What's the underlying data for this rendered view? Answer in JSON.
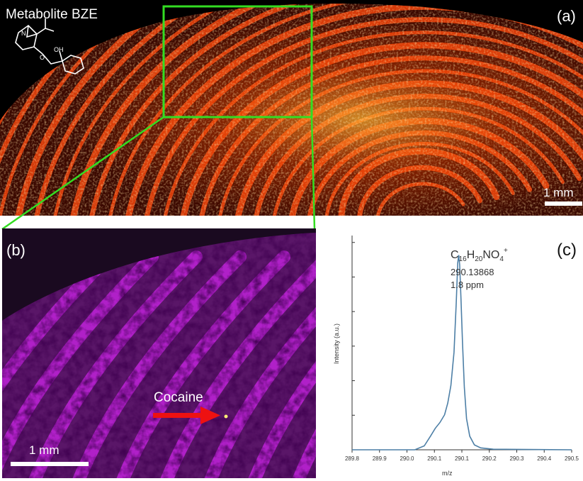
{
  "panel_a": {
    "title": "Metabolite BZE",
    "label": "(a)",
    "scale_bar": "1 mm",
    "molecule": {
      "atom_n": "N",
      "atom_oh": "OH",
      "atom_o": "O"
    }
  },
  "panel_b": {
    "label": "(b)",
    "annotation": "Cocaine",
    "scale_bar": "1 mm"
  },
  "panel_c": {
    "label": "(c)",
    "formula": {
      "c": "C",
      "c_sub": "16",
      "h": "H",
      "h_sub": "20",
      "no": "NO",
      "o_sub": "4",
      "charge": "+"
    },
    "mass": "290.13868",
    "ppm": "1.8 ppm"
  },
  "colors": {
    "zoom_box": "#33dd22",
    "arrow": "#ee1111",
    "spectrum": "#4d7fa6",
    "heat": "#ff5a00",
    "magenta": "#b020c8"
  },
  "chart_data": {
    "type": "line",
    "xlabel": "m/z",
    "ylabel": "Intensity (a.u.)",
    "xlim": [
      289.8,
      290.5
    ],
    "ylim": [
      0,
      1.1
    ],
    "x_ticks": [
      "289.8",
      "289.9",
      "290.0",
      "290.1",
      "290.1",
      "290.2",
      "290.3",
      "290.4",
      "290.5"
    ],
    "series": [
      {
        "x": [
          289.8,
          290.0,
          290.03,
          290.05,
          290.065,
          290.08,
          290.095,
          290.105,
          290.115,
          290.125,
          290.132,
          290.137,
          290.14,
          290.143,
          290.147,
          290.152,
          290.158,
          290.165,
          290.175,
          290.19,
          290.21,
          290.25,
          290.5
        ],
        "y": [
          0.0,
          0.0,
          0.02,
          0.07,
          0.11,
          0.14,
          0.18,
          0.24,
          0.33,
          0.5,
          0.75,
          0.96,
          1.0,
          0.95,
          0.78,
          0.55,
          0.32,
          0.16,
          0.07,
          0.025,
          0.01,
          0.003,
          0.0
        ]
      }
    ],
    "grid": false
  }
}
